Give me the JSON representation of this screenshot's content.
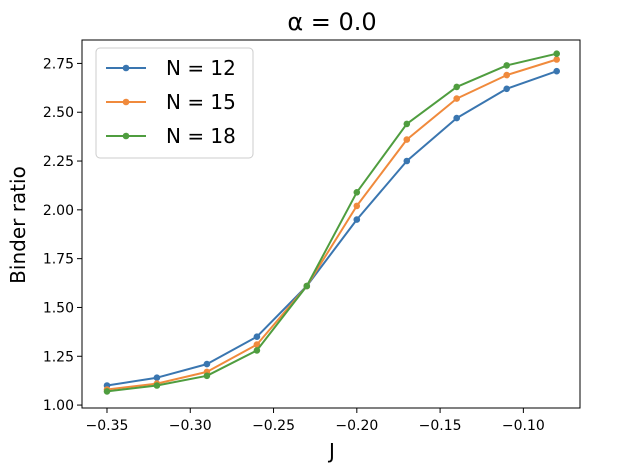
{
  "chart_data": {
    "type": "line",
    "title": "α = 0.0",
    "xlabel": "J",
    "ylabel": "Binder ratio",
    "xlim": [
      -0.365,
      -0.066
    ],
    "ylim": [
      0.985,
      2.87
    ],
    "xticks": [
      -0.35,
      -0.3,
      -0.25,
      -0.2,
      -0.15,
      -0.1
    ],
    "xtick_labels": [
      "−0.35",
      "−0.30",
      "−0.25",
      "−0.20",
      "−0.15",
      "−0.10"
    ],
    "yticks": [
      1.0,
      1.25,
      1.5,
      1.75,
      2.0,
      2.25,
      2.5,
      2.75
    ],
    "ytick_labels": [
      "1.00",
      "1.25",
      "1.50",
      "1.75",
      "2.00",
      "2.25",
      "2.50",
      "2.75"
    ],
    "grid": false,
    "legend_position": "top-left",
    "x": [
      -0.35,
      -0.32,
      -0.29,
      -0.26,
      -0.23,
      -0.2,
      -0.17,
      -0.14,
      -0.11,
      -0.08
    ],
    "series": [
      {
        "name": "N = 12",
        "color": "#3a76b0",
        "values": [
          1.1,
          1.14,
          1.21,
          1.35,
          1.61,
          1.95,
          2.25,
          2.47,
          2.62,
          2.71
        ]
      },
      {
        "name": "N = 15",
        "color": "#f08a3c",
        "values": [
          1.08,
          1.11,
          1.17,
          1.31,
          1.61,
          2.02,
          2.36,
          2.57,
          2.69,
          2.77
        ]
      },
      {
        "name": "N = 18",
        "color": "#4f9d3f",
        "values": [
          1.07,
          1.1,
          1.15,
          1.28,
          1.61,
          2.09,
          2.44,
          2.63,
          2.74,
          2.8
        ]
      }
    ]
  }
}
